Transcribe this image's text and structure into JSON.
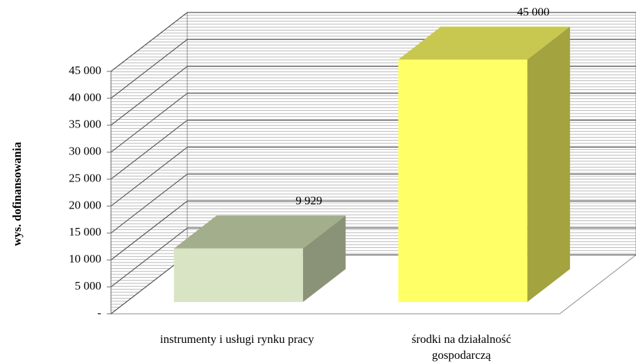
{
  "chart_data": {
    "type": "bar3d",
    "y_label": "wys. dofinansowania",
    "categories": [
      "instrumenty i usługi rynku pracy",
      "środki na działalność gospodarczą"
    ],
    "values": [
      9929,
      45000
    ],
    "value_labels": [
      "9 929",
      "45 000"
    ],
    "colors": [
      {
        "front": "#d9e4c4",
        "top": "#a3ae8c",
        "side": "#8a9377"
      },
      {
        "front": "#ffff66",
        "top": "#c8c850",
        "side": "#a3a33f"
      }
    ],
    "ylim": [
      0,
      45000
    ],
    "yticks": [
      {
        "value": 0,
        "label": "-"
      },
      {
        "value": 5000,
        "label": "5 000"
      },
      {
        "value": 10000,
        "label": "10 000"
      },
      {
        "value": 15000,
        "label": "15 000"
      },
      {
        "value": 20000,
        "label": "20 000"
      },
      {
        "value": 25000,
        "label": "25 000"
      },
      {
        "value": 30000,
        "label": "30 000"
      },
      {
        "value": 35000,
        "label": "35 000"
      },
      {
        "value": 40000,
        "label": "40 000"
      },
      {
        "value": 45000,
        "label": "45 000"
      }
    ],
    "grid": true
  }
}
